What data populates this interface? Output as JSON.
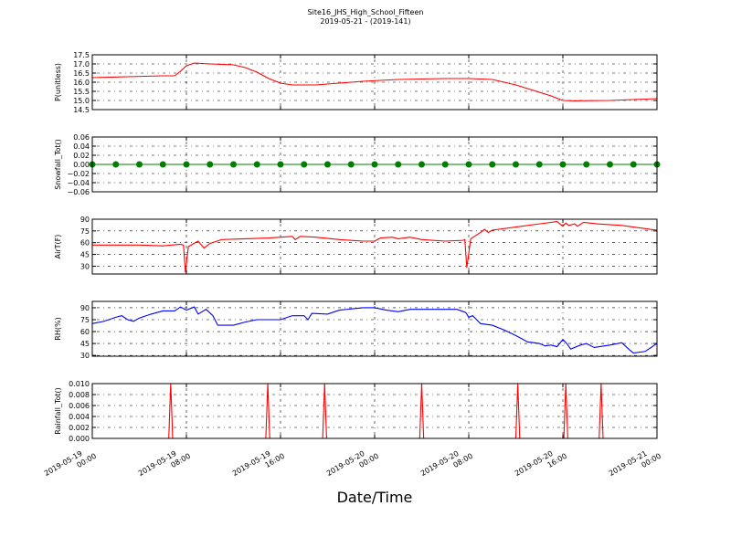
{
  "figure": {
    "title": "Site16_JHS_High_School_Fifteen",
    "subtitle": "2019-05-21 - (2019-141)",
    "xlabel": "Date/Time"
  },
  "chart_data": [
    {
      "type": "line",
      "ylabel": "P(unitless)",
      "grid": true,
      "xlim": [
        "2019-05-19 00:00",
        "2019-05-21 00:00"
      ],
      "xticks": [
        "2019-05-19 00:00",
        "2019-05-19 08:00",
        "2019-05-19 16:00",
        "2019-05-20 00:00",
        "2019-05-20 08:00",
        "2019-05-20 16:00",
        "2019-05-21 00:00"
      ],
      "ylim": [
        14.5,
        17.5
      ],
      "yticks": [
        14.5,
        {
          "value": 15,
          "label": "15.0"
        },
        15.5,
        {
          "value": 16,
          "label": "16.0"
        },
        16.5,
        {
          "value": 17,
          "label": "17.0"
        },
        17.5
      ],
      "series": [
        {
          "color": "#ff0000",
          "x": [
            "2019-05-19 00:00",
            "2019-05-19 03:00",
            "2019-05-19 06:00",
            "2019-05-19 07:00",
            "2019-05-19 07:30",
            "2019-05-19 08:00",
            "2019-05-19 08:40",
            "2019-05-19 10:00",
            "2019-05-19 12:00",
            "2019-05-19 13:00",
            "2019-05-19 14:00",
            "2019-05-19 15:00",
            "2019-05-19 16:00",
            "2019-05-19 17:00",
            "2019-05-19 19:00",
            "2019-05-19 21:00",
            "2019-05-19 23:00",
            "2019-05-20 02:00",
            "2019-05-20 06:00",
            "2019-05-20 08:00",
            "2019-05-20 10:00",
            "2019-05-20 12:00",
            "2019-05-20 14:00",
            "2019-05-20 15:00",
            "2019-05-20 16:00",
            "2019-05-20 17:00",
            "2019-05-20 20:00",
            "2019-05-20 22:00",
            "2019-05-21 00:00"
          ],
          "values": [
            16.25,
            16.3,
            16.35,
            16.35,
            16.6,
            16.9,
            17.05,
            17.0,
            16.95,
            16.8,
            16.55,
            16.2,
            15.95,
            15.85,
            15.85,
            15.95,
            16.05,
            16.15,
            16.2,
            16.2,
            16.15,
            15.85,
            15.45,
            15.25,
            15.0,
            14.98,
            15.0,
            15.05,
            15.1
          ]
        }
      ]
    },
    {
      "type": "line",
      "ylabel": "Snowfall_Tot()",
      "grid": true,
      "markers": true,
      "xlim": [
        "2019-05-19 00:00",
        "2019-05-21 00:00"
      ],
      "xticks": [
        "2019-05-19 00:00",
        "2019-05-19 08:00",
        "2019-05-19 16:00",
        "2019-05-20 00:00",
        "2019-05-20 08:00",
        "2019-05-20 16:00",
        "2019-05-21 00:00"
      ],
      "ylim": [
        -0.06,
        0.06
      ],
      "yticks": [
        {
          "value": -0.06,
          "label": "−0.06"
        },
        {
          "value": -0.04,
          "label": "−0.04"
        },
        {
          "value": -0.02,
          "label": "−0.02"
        },
        {
          "value": 0,
          "label": "0.00"
        },
        0.02,
        0.04,
        0.06
      ],
      "series": [
        {
          "color": "#008000",
          "x": [
            "2019-05-19 00:00",
            "2019-05-19 02:00",
            "2019-05-19 04:00",
            "2019-05-19 06:00",
            "2019-05-19 08:00",
            "2019-05-19 10:00",
            "2019-05-19 12:00",
            "2019-05-19 14:00",
            "2019-05-19 16:00",
            "2019-05-19 18:00",
            "2019-05-19 20:00",
            "2019-05-19 22:00",
            "2019-05-20 00:00",
            "2019-05-20 02:00",
            "2019-05-20 04:00",
            "2019-05-20 06:00",
            "2019-05-20 08:00",
            "2019-05-20 10:00",
            "2019-05-20 12:00",
            "2019-05-20 14:00",
            "2019-05-20 16:00",
            "2019-05-20 18:00",
            "2019-05-20 20:00",
            "2019-05-20 22:00",
            "2019-05-21 00:00"
          ],
          "values": [
            0,
            0,
            0,
            0,
            0,
            0,
            0,
            0,
            0,
            0,
            0,
            0,
            0,
            0,
            0,
            0,
            0,
            0,
            0,
            0,
            0,
            0,
            0,
            0,
            0
          ]
        }
      ]
    },
    {
      "type": "line",
      "ylabel": "AirT(F)",
      "grid": true,
      "xlim": [
        "2019-05-19 00:00",
        "2019-05-21 00:00"
      ],
      "xticks": [
        "2019-05-19 00:00",
        "2019-05-19 08:00",
        "2019-05-19 16:00",
        "2019-05-20 00:00",
        "2019-05-20 08:00",
        "2019-05-20 16:00",
        "2019-05-21 00:00"
      ],
      "ylim": [
        20,
        90
      ],
      "yticks": [
        30,
        45,
        60,
        75,
        90
      ],
      "series": [
        {
          "color": "#ff0000",
          "x": [
            "2019-05-19 00:00",
            "2019-05-19 04:00",
            "2019-05-19 06:00",
            "2019-05-19 07:30",
            "2019-05-19 07:45",
            "2019-05-19 07:55",
            "2019-05-19 08:10",
            "2019-05-19 09:00",
            "2019-05-19 09:30",
            "2019-05-19 10:00",
            "2019-05-19 11:00",
            "2019-05-19 13:00",
            "2019-05-19 15:00",
            "2019-05-19 17:00",
            "2019-05-19 17:15",
            "2019-05-19 17:40",
            "2019-05-19 19:00",
            "2019-05-19 21:00",
            "2019-05-19 23:00",
            "2019-05-20 00:00",
            "2019-05-20 00:30",
            "2019-05-20 01:30",
            "2019-05-20 02:00",
            "2019-05-20 03:00",
            "2019-05-20 04:00",
            "2019-05-20 06:00",
            "2019-05-20 07:30",
            "2019-05-20 07:40",
            "2019-05-20 07:50",
            "2019-05-20 08:10",
            "2019-05-20 09:00",
            "2019-05-20 09:20",
            "2019-05-20 09:40",
            "2019-05-20 10:00",
            "2019-05-20 12:00",
            "2019-05-20 14:00",
            "2019-05-20 15:30",
            "2019-05-20 16:00",
            "2019-05-20 16:15",
            "2019-05-20 16:30",
            "2019-05-20 17:00",
            "2019-05-20 17:15",
            "2019-05-20 17:45",
            "2019-05-20 19:00",
            "2019-05-20 21:00",
            "2019-05-20 23:00",
            "2019-05-21 00:00"
          ],
          "values": [
            57,
            57,
            56,
            58,
            57,
            22,
            55,
            62,
            53,
            59,
            64,
            65,
            66,
            68,
            64,
            68,
            67,
            64,
            62,
            62,
            66,
            67,
            65,
            67,
            64,
            62,
            63,
            64,
            28,
            65,
            73,
            77,
            73,
            76,
            80,
            84,
            87,
            81,
            85,
            82,
            84,
            81,
            86,
            84,
            82,
            78,
            76
          ]
        }
      ]
    },
    {
      "type": "line",
      "ylabel": "RH(%)",
      "grid": true,
      "xlim": [
        "2019-05-19 00:00",
        "2019-05-21 00:00"
      ],
      "xticks": [
        "2019-05-19 00:00",
        "2019-05-19 08:00",
        "2019-05-19 16:00",
        "2019-05-20 00:00",
        "2019-05-20 08:00",
        "2019-05-20 16:00",
        "2019-05-21 00:00"
      ],
      "ylim": [
        29,
        98
      ],
      "yticks": [
        30,
        45,
        60,
        75,
        90
      ],
      "series": [
        {
          "color": "#0000ff",
          "x": [
            "2019-05-19 00:00",
            "2019-05-19 01:00",
            "2019-05-19 02:00",
            "2019-05-19 02:30",
            "2019-05-19 03:00",
            "2019-05-19 03:30",
            "2019-05-19 04:00",
            "2019-05-19 05:00",
            "2019-05-19 06:00",
            "2019-05-19 07:00",
            "2019-05-19 07:30",
            "2019-05-19 08:00",
            "2019-05-19 08:40",
            "2019-05-19 09:00",
            "2019-05-19 09:40",
            "2019-05-19 10:15",
            "2019-05-19 10:40",
            "2019-05-19 12:00",
            "2019-05-19 13:00",
            "2019-05-19 14:00",
            "2019-05-19 16:00",
            "2019-05-19 17:00",
            "2019-05-19 18:00",
            "2019-05-19 18:20",
            "2019-05-19 18:40",
            "2019-05-19 20:00",
            "2019-05-19 21:00",
            "2019-05-19 23:00",
            "2019-05-20 00:00",
            "2019-05-20 01:00",
            "2019-05-20 02:00",
            "2019-05-20 03:00",
            "2019-05-20 05:00",
            "2019-05-20 07:00",
            "2019-05-20 07:45",
            "2019-05-20 08:00",
            "2019-05-20 08:20",
            "2019-05-20 09:00",
            "2019-05-20 10:00",
            "2019-05-20 11:00",
            "2019-05-20 12:00",
            "2019-05-20 13:00",
            "2019-05-20 14:00",
            "2019-05-20 14:30",
            "2019-05-20 15:00",
            "2019-05-20 15:30",
            "2019-05-20 16:00",
            "2019-05-20 16:20",
            "2019-05-20 16:40",
            "2019-05-20 17:30",
            "2019-05-20 18:00",
            "2019-05-20 18:40",
            "2019-05-20 20:00",
            "2019-05-20 21:00",
            "2019-05-20 21:40",
            "2019-05-20 22:00",
            "2019-05-20 23:00",
            "2019-05-21 00:00"
          ],
          "values": [
            70,
            73,
            78,
            80,
            75,
            73,
            77,
            82,
            86,
            86,
            91,
            87,
            91,
            82,
            88,
            80,
            68,
            68,
            72,
            75,
            75,
            80,
            80,
            75,
            83,
            82,
            87,
            90,
            90,
            87,
            85,
            88,
            88,
            88,
            84,
            78,
            80,
            70,
            68,
            62,
            55,
            47,
            45,
            42,
            43,
            41,
            50,
            45,
            38,
            43,
            45,
            40,
            43,
            46,
            37,
            33,
            35,
            45
          ]
        }
      ]
    },
    {
      "type": "line",
      "ylabel": "Rainfall_Tot()",
      "grid": true,
      "xlim": [
        "2019-05-19 00:00",
        "2019-05-21 00:00"
      ],
      "xticks": [
        "2019-05-19 00:00",
        "2019-05-19 08:00",
        "2019-05-19 16:00",
        "2019-05-20 00:00",
        "2019-05-20 08:00",
        "2019-05-20 16:00",
        "2019-05-21 00:00"
      ],
      "ylim": [
        0,
        0.01
      ],
      "yticks": [
        {
          "value": 0,
          "label": "0.000"
        },
        0.002,
        0.004,
        0.006,
        0.008,
        {
          "value": 0.01,
          "label": "0.010"
        }
      ],
      "series": [
        {
          "color": "#ff0000",
          "x": [
            "2019-05-19 00:00",
            "2019-05-19 06:30",
            "2019-05-19 06:40",
            "2019-05-19 06:50",
            "2019-05-19 14:45",
            "2019-05-19 14:55",
            "2019-05-19 15:05",
            "2019-05-19 19:35",
            "2019-05-19 19:45",
            "2019-05-19 19:55",
            "2019-05-20 03:50",
            "2019-05-20 04:00",
            "2019-05-20 04:10",
            "2019-05-20 12:00",
            "2019-05-20 12:10",
            "2019-05-20 12:20",
            "2019-05-20 16:05",
            "2019-05-20 16:15",
            "2019-05-20 16:25",
            "2019-05-20 19:05",
            "2019-05-20 19:15",
            "2019-05-20 19:25",
            "2019-05-21 00:00"
          ],
          "values": [
            0,
            0,
            0.01,
            0,
            0,
            0.01,
            0,
            0,
            0.01,
            0,
            0,
            0.01,
            0,
            0,
            0.01,
            0,
            0,
            0.01,
            0,
            0,
            0.01,
            0,
            0
          ]
        }
      ]
    }
  ]
}
